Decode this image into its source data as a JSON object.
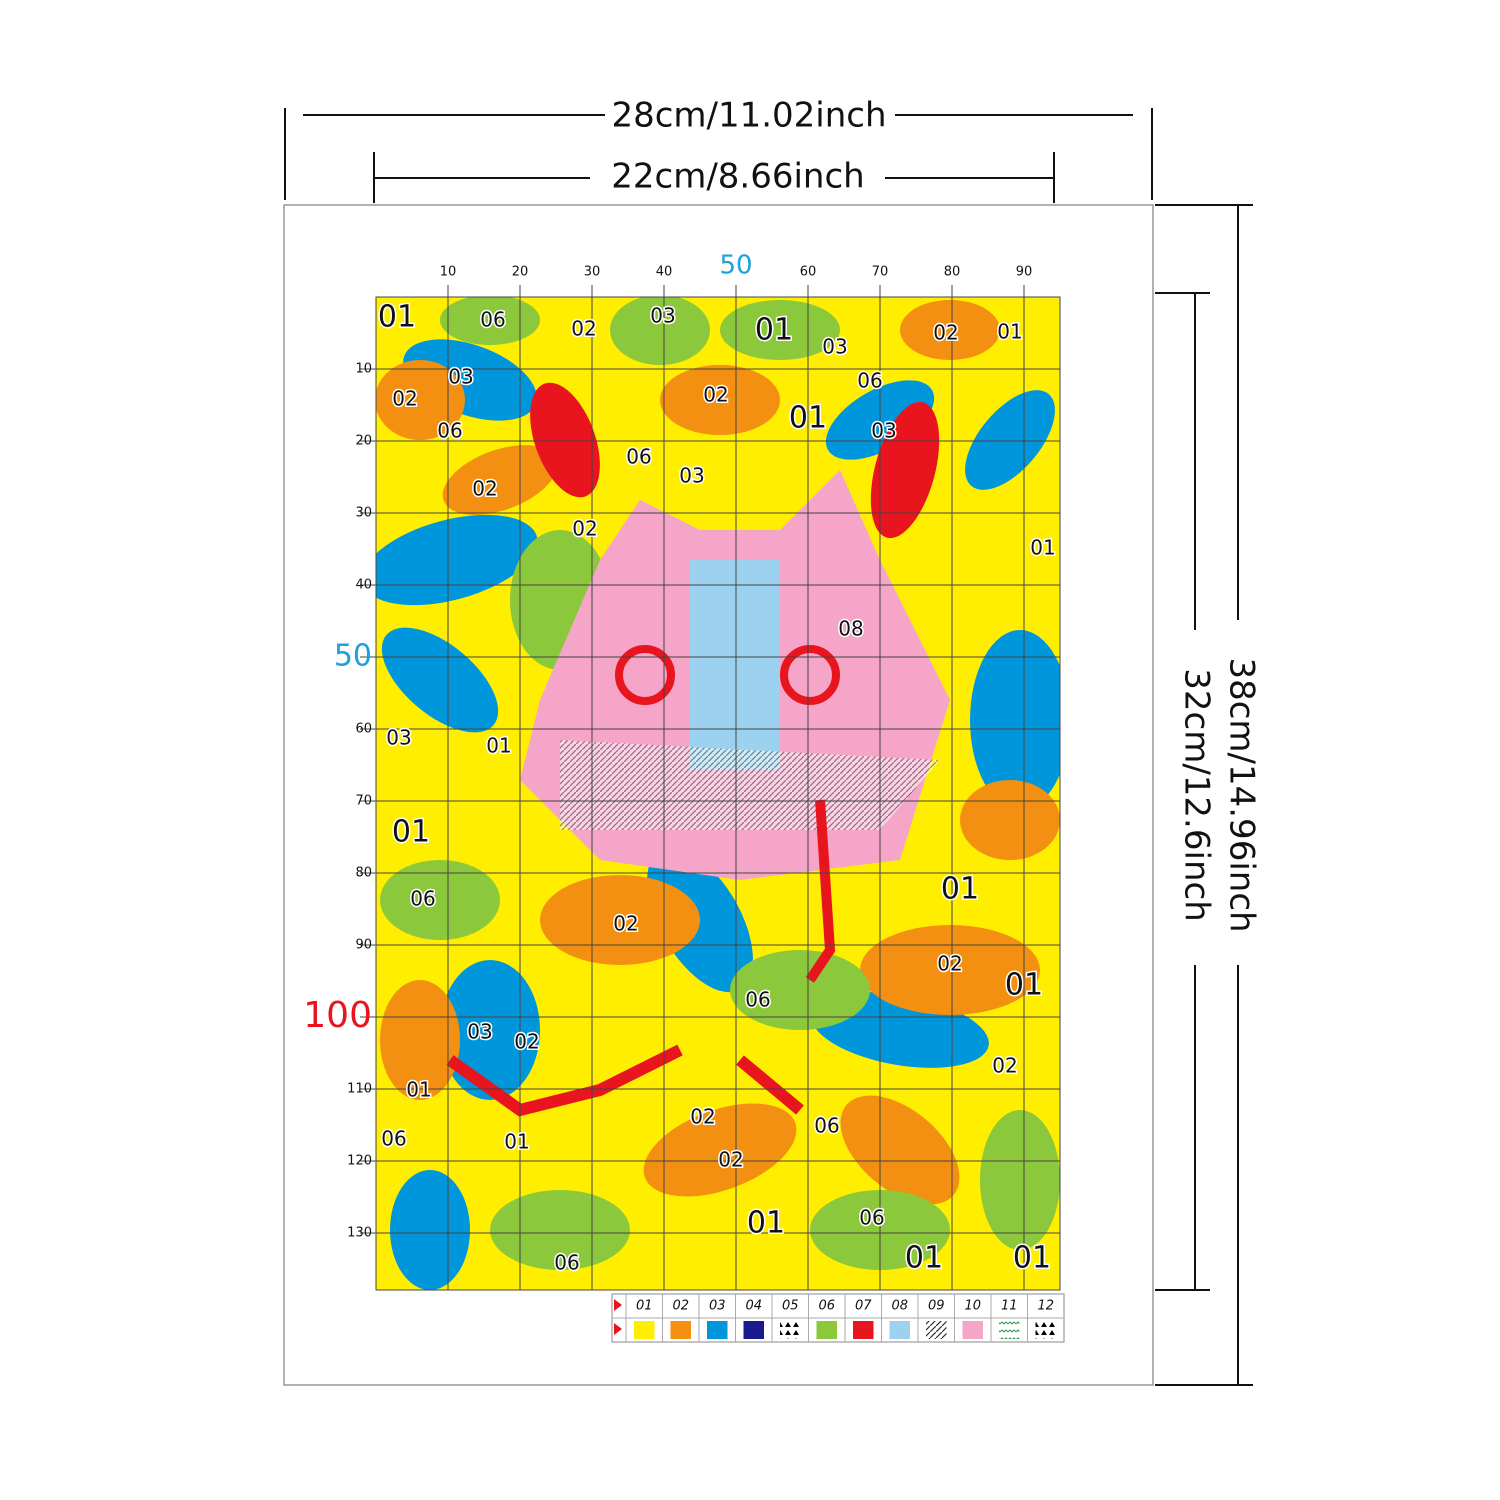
{
  "dimensions": {
    "outer_width": "28cm/11.02inch",
    "inner_width": "22cm/8.66inch",
    "outer_height": "38cm/14.96inch",
    "inner_height": "32cm/12.6inch"
  },
  "pattern": {
    "top_ticks": [
      "10",
      "20",
      "30",
      "40",
      "50",
      "60",
      "70",
      "80",
      "90"
    ],
    "left_ticks": [
      "10",
      "20",
      "30",
      "40",
      "50",
      "60",
      "70",
      "80",
      "90",
      "100",
      "110",
      "120",
      "130"
    ],
    "region_labels": [
      "01",
      "06",
      "02",
      "03",
      "01",
      "03",
      "02",
      "01",
      "03",
      "06",
      "02",
      "02",
      "01",
      "06",
      "03",
      "06",
      "03",
      "02",
      "02",
      "01",
      "08",
      "03",
      "01",
      "01",
      "01",
      "06",
      "02",
      "02",
      "01",
      "06",
      "03",
      "02",
      "02",
      "01",
      "02",
      "06",
      "06",
      "01",
      "02",
      "01",
      "06",
      "01",
      "01",
      "06"
    ]
  },
  "legend": {
    "codes": [
      "01",
      "02",
      "03",
      "04",
      "05",
      "06",
      "07",
      "08",
      "09",
      "10",
      "11",
      "12"
    ],
    "colors": [
      "#ffee00",
      "#f39012",
      "#0096dc",
      "#1a1a8c",
      "#2a9a4a",
      "#8cc83c",
      "#e8141e",
      "#9cd2f0",
      "#333333",
      "#f5a5c8",
      "#2a9a4a",
      "#f39012"
    ],
    "fills": [
      "solid",
      "solid",
      "solid",
      "solid",
      "triangles",
      "solid",
      "solid",
      "solid",
      "hatch",
      "solid",
      "zigzag",
      "triangles"
    ]
  }
}
